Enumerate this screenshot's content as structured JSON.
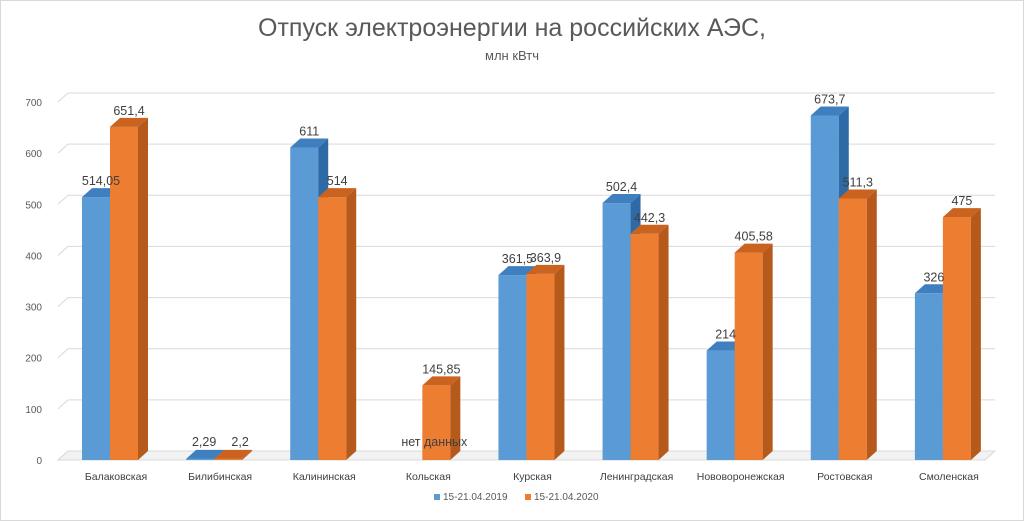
{
  "chart_data": {
    "type": "bar",
    "title": "Отпуск электроэнергии на российских АЭС,",
    "subtitle": "млн кВтч",
    "categories": [
      "Балаковская",
      "Билибинская",
      "Калининская",
      "Кольская",
      "Курская",
      "Ленинградская",
      "Нововоронежская",
      "Ростовская",
      "Смоленская"
    ],
    "series": [
      {
        "name": "15-21.04.2019",
        "color": "#5b9bd5",
        "side_color": "#2e6aa6",
        "top_color": "#3f7fbf",
        "values": [
          514.05,
          2.29,
          611,
          0,
          361.5,
          502.4,
          214,
          673.7,
          326
        ],
        "labels": [
          "514,05",
          "",
          "611",
          "нет данных",
          "361,5",
          "502,4",
          "214",
          "673,7",
          "326"
        ]
      },
      {
        "name": "15-21.04.2020",
        "color": "#ed7d31",
        "side_color": "#b65a1c",
        "top_color": "#c9631f",
        "values": [
          651.4,
          2.2,
          514,
          145.85,
          363.9,
          442.3,
          405.58,
          511.3,
          475
        ],
        "labels": [
          "651,4",
          "2,2",
          "514",
          "145,85",
          "363,9",
          "442,3",
          "405,58",
          "511,3",
          "475"
        ]
      }
    ],
    "extra_labels": [
      "2,29"
    ],
    "yticks": [
      0,
      100,
      200,
      300,
      400,
      500,
      600,
      700
    ],
    "ylim": [
      0,
      700
    ],
    "legend_position": "bottom"
  }
}
